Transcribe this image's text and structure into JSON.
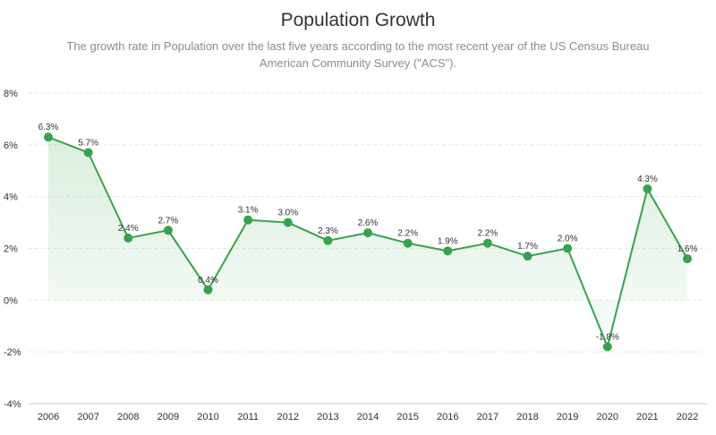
{
  "chart_data": {
    "type": "line",
    "title": "Population Growth",
    "subtitle_lines": [
      "The growth rate in Population over the last five years according to the most recent year of the US Census Bureau",
      "American Community Survey (\"ACS\")."
    ],
    "xlabel": "",
    "ylabel": "",
    "x": [
      "2006",
      "2007",
      "2008",
      "2009",
      "2010",
      "2011",
      "2012",
      "2013",
      "2014",
      "2015",
      "2016",
      "2017",
      "2018",
      "2019",
      "2020",
      "2021",
      "2022"
    ],
    "values": [
      6.3,
      5.7,
      2.4,
      2.7,
      0.4,
      3.1,
      3.0,
      2.3,
      2.6,
      2.2,
      1.9,
      2.2,
      1.7,
      2.0,
      -1.8,
      4.3,
      1.6
    ],
    "value_labels": [
      "6.3%",
      "5.7%",
      "2.4%",
      "2.7%",
      "0.4%",
      "3.1%",
      "3.0%",
      "2.3%",
      "2.6%",
      "2.2%",
      "1.9%",
      "2.2%",
      "1.7%",
      "2.0%",
      "-1.8%",
      "4.3%",
      "1.6%"
    ],
    "ylim": [
      -4,
      8
    ],
    "yticks": [
      8,
      6,
      4,
      2,
      0,
      -2,
      -4
    ],
    "ytick_labels": [
      "8%",
      "6%",
      "4%",
      "2%",
      "0%",
      "-2%",
      "-4%"
    ],
    "grid": true,
    "colors": {
      "line": "#37a24b",
      "fill_top": "#37a24b"
    }
  }
}
